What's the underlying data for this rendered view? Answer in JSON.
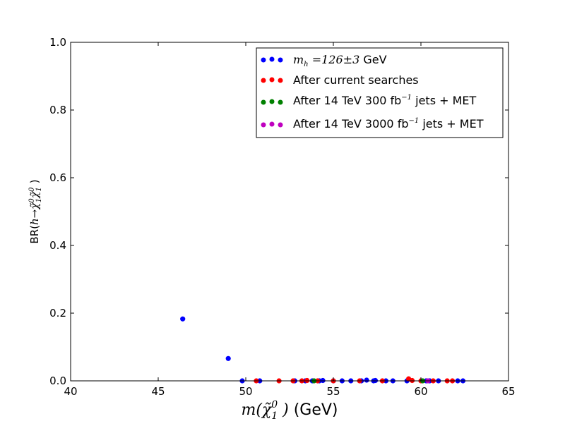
{
  "chart_data": {
    "type": "scatter",
    "title": "",
    "xlabel_parts": {
      "italic": "m(χ̃",
      "sup": "0",
      "sub": "1",
      "close": " )",
      "unit": " (GeV)"
    },
    "ylabel_parts": {
      "br": "BR(",
      "mid": "h→χ̃",
      "sup1": "0",
      "sub1": "1",
      "chi2": "χ̃",
      "sup2": "0",
      "sub2": "1",
      "close": " )"
    },
    "xlim": [
      40,
      65
    ],
    "ylim": [
      0,
      1.0
    ],
    "xticks": [
      40,
      45,
      50,
      55,
      60,
      65
    ],
    "yticks": [
      0.0,
      0.2,
      0.4,
      0.6,
      0.8,
      1.0
    ],
    "xtick_labels": [
      "40",
      "45",
      "50",
      "55",
      "60",
      "65"
    ],
    "ytick_labels": [
      "0.0",
      "0.2",
      "0.4",
      "0.6",
      "0.8",
      "1.0"
    ],
    "grid": false,
    "legend_position": "top-right",
    "legend": [
      {
        "key": "mh",
        "math": "m",
        "sub": "h",
        "text_math": " =126±3",
        "text": " GeV",
        "color": "#0000ff"
      },
      {
        "key": "current",
        "text": "After current searches",
        "color": "#ff0000"
      },
      {
        "key": "lhc300",
        "text_pre": "After 14 TeV 300 fb",
        "sup": "−1",
        "text_post": " jets + MET",
        "color": "#008000"
      },
      {
        "key": "lhc3000",
        "text_pre": "After 14 TeV 3000 fb",
        "sup": "−1",
        "text_post": " jets + MET",
        "color": "#bf00bf"
      }
    ],
    "series": [
      {
        "key": "mh",
        "color": "#0000ff",
        "x": [
          46.4,
          49.0,
          49.8,
          50.8,
          52.8,
          53.4,
          53.8,
          54.2,
          54.4,
          55.0,
          55.5,
          56.0,
          56.6,
          56.9,
          57.3,
          57.4,
          58.0,
          58.4,
          59.2,
          60.3,
          60.5,
          61.0,
          62.1,
          62.4
        ],
        "y": [
          0.183,
          0.066,
          0.0,
          0.0,
          0.0,
          0.0,
          0.0,
          0.0,
          0.001,
          0.0,
          0.0,
          0.0,
          0.0,
          0.002,
          0.0,
          0.001,
          0.0,
          0.0,
          0.0,
          0.0,
          0.0,
          0.0,
          0.0,
          0.0
        ]
      },
      {
        "key": "current",
        "color": "#ff0000",
        "x": [
          50.6,
          51.9,
          52.7,
          53.2,
          53.5,
          54.1,
          55.0,
          56.5,
          57.8,
          59.3,
          59.5,
          60.0,
          60.7,
          61.5,
          61.8
        ],
        "y": [
          0.0,
          0.0,
          0.0,
          0.0,
          0.001,
          0.0,
          0.0,
          0.0,
          0.0,
          0.006,
          0.001,
          0.0,
          0.0,
          0.0,
          0.0
        ]
      },
      {
        "key": "lhc300",
        "color": "#008000",
        "x": [
          53.9,
          60.1
        ],
        "y": [
          0.0,
          0.0
        ]
      },
      {
        "key": "lhc3000",
        "color": "#bf00bf",
        "x": [
          60.4
        ],
        "y": [
          0.0
        ]
      }
    ]
  }
}
